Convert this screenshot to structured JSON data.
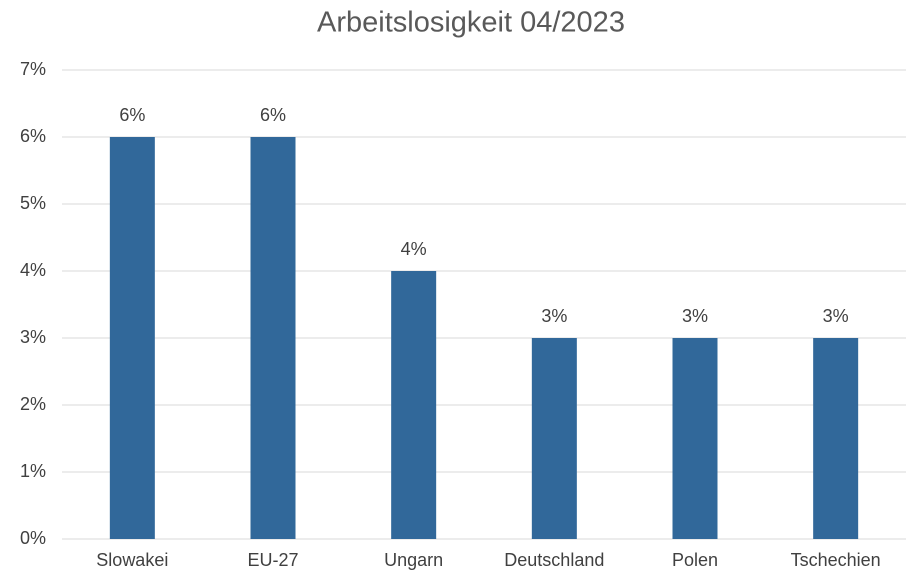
{
  "chart_data": {
    "type": "bar",
    "title": "Arbeitslosigkeit 04/2023",
    "categories": [
      "Slowakei",
      "EU-27",
      "Ungarn",
      "Deutschland",
      "Polen",
      "Tschechien"
    ],
    "values": [
      6,
      6,
      4,
      3,
      3,
      3
    ],
    "value_labels": [
      "6%",
      "6%",
      "4%",
      "3%",
      "3%",
      "3%"
    ],
    "color": "#31689a",
    "ylim": [
      0,
      7
    ],
    "yticks": [
      {
        "value": 0,
        "label": "0%"
      },
      {
        "value": 1,
        "label": "1%"
      },
      {
        "value": 2,
        "label": "2%"
      },
      {
        "value": 3,
        "label": "3%"
      },
      {
        "value": 4,
        "label": "4%"
      },
      {
        "value": 5,
        "label": "5%"
      },
      {
        "value": 6,
        "label": "6%"
      },
      {
        "value": 7,
        "label": "7%"
      }
    ],
    "grid": true
  }
}
